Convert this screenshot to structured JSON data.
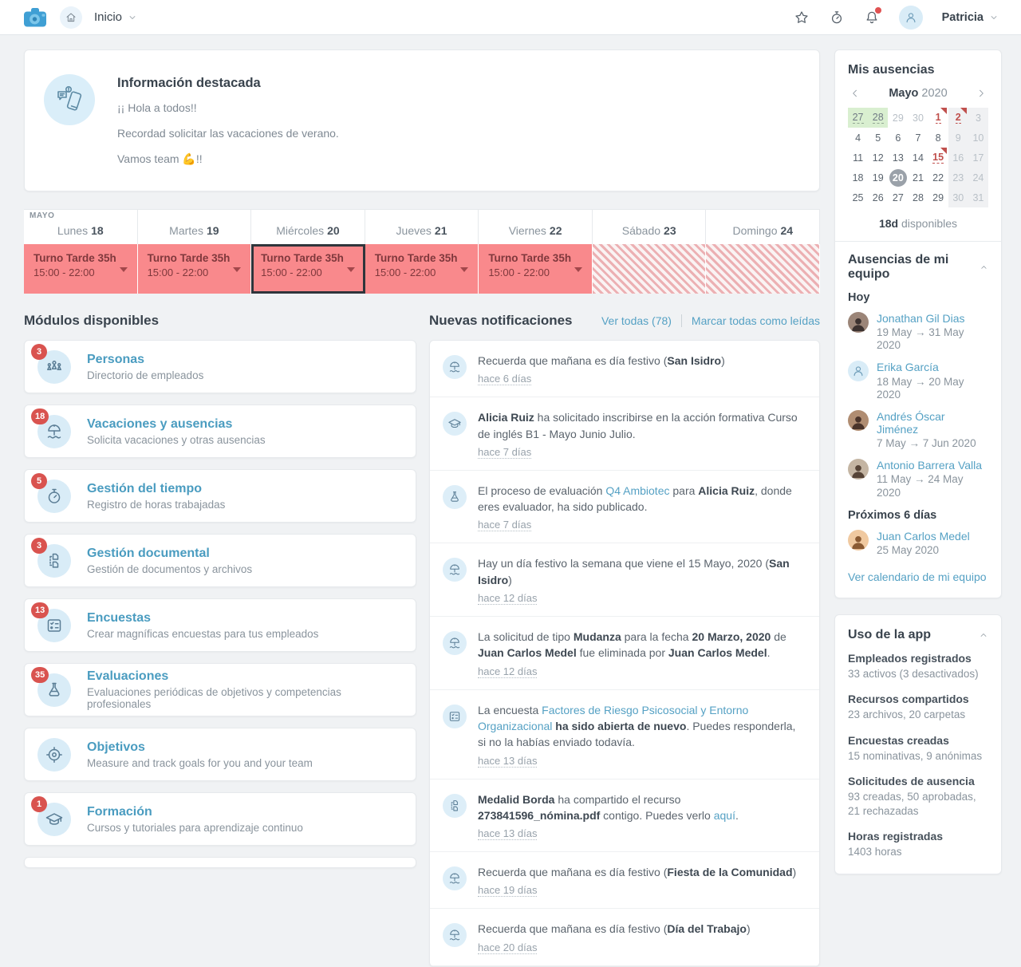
{
  "topbar": {
    "nav_title": "Inicio",
    "user_name": "Patricia"
  },
  "colors": {
    "accent_link": "#55a1c4",
    "badge_red": "#d9534f",
    "shift_pink": "#f9898c",
    "shift_text": "#7f383c",
    "calendar_red": "#c0504d",
    "calendar_green_bg": "#d9efd0",
    "selected_day_bg": "#9aa1a9",
    "notification_dot": "#e05252"
  },
  "highlight": {
    "title": "Información destacada",
    "lines": [
      "¡¡ Hola a todos!!",
      "Recordad solicitar las vacaciones de verano.",
      "Vamos team 💪!!"
    ]
  },
  "schedule": {
    "month_label": "MAYO",
    "shift_title": "Turno Tarde 35h",
    "shift_time": "15:00 - 22:00",
    "days": [
      {
        "name": "Lunes",
        "num": "18",
        "kind": "shift"
      },
      {
        "name": "Martes",
        "num": "19",
        "kind": "shift"
      },
      {
        "name": "Miércoles",
        "num": "20",
        "kind": "shift",
        "selected": true
      },
      {
        "name": "Jueves",
        "num": "21",
        "kind": "shift"
      },
      {
        "name": "Viernes",
        "num": "22",
        "kind": "shift"
      },
      {
        "name": "Sábado",
        "num": "23",
        "kind": "off"
      },
      {
        "name": "Domingo",
        "num": "24",
        "kind": "off"
      }
    ]
  },
  "modules": {
    "heading": "Módulos disponibles",
    "items": [
      {
        "id": "personas",
        "badge": "3",
        "icon": "people",
        "title": "Personas",
        "subtitle": "Directorio de empleados"
      },
      {
        "id": "vacaciones",
        "badge": "18",
        "icon": "umbrella",
        "title": "Vacaciones y ausencias",
        "subtitle": "Solicita vacaciones y otras ausencias"
      },
      {
        "id": "gestion-tiempo",
        "badge": "5",
        "icon": "stopwatch",
        "title": "Gestión del tiempo",
        "subtitle": "Registro de horas trabajadas"
      },
      {
        "id": "gestion-documental",
        "badge": "3",
        "icon": "documents",
        "title": "Gestión documental",
        "subtitle": "Gestión de documentos y archivos"
      },
      {
        "id": "encuestas",
        "badge": "13",
        "icon": "checklist",
        "title": "Encuestas",
        "subtitle": "Crear magníficas encuestas para tus empleados"
      },
      {
        "id": "evaluaciones",
        "badge": "35",
        "icon": "flask",
        "title": "Evaluaciones",
        "subtitle": "Evaluaciones periódicas de objetivos y competencias profesionales"
      },
      {
        "id": "objetivos",
        "badge": null,
        "icon": "target",
        "title": "Objetivos",
        "subtitle": "Measure and track goals for you and your team"
      },
      {
        "id": "formacion",
        "badge": "1",
        "icon": "gradcap",
        "title": "Formación",
        "subtitle": "Cursos y tutoriales para aprendizaje continuo"
      }
    ]
  },
  "notifications": {
    "heading": "Nuevas notificaciones",
    "view_all": "Ver todas (78)",
    "mark_all": "Marcar todas como leídas",
    "items": [
      {
        "icon": "umbrella",
        "time": "hace 6 días",
        "segments": [
          [
            "n",
            "Recuerda que mañana es día festivo ("
          ],
          [
            "b",
            "San Isidro"
          ],
          [
            "n",
            ")"
          ]
        ]
      },
      {
        "icon": "gradcap",
        "time": "hace 7 días",
        "segments": [
          [
            "b",
            "Alicia Ruiz"
          ],
          [
            "n",
            " ha solicitado inscribirse en la acción formativa Curso de inglés B1 - Mayo Junio Julio."
          ]
        ]
      },
      {
        "icon": "flask",
        "time": "hace 7 días",
        "segments": [
          [
            "n",
            "El proceso de evaluación "
          ],
          [
            "l",
            "Q4 Ambiotec"
          ],
          [
            "n",
            " para "
          ],
          [
            "b",
            "Alicia Ruiz"
          ],
          [
            "n",
            ", donde eres evaluador, ha sido publicado."
          ]
        ]
      },
      {
        "icon": "umbrella",
        "time": "hace 12 días",
        "segments": [
          [
            "n",
            "Hay un día festivo la semana que viene el 15 Mayo, 2020 ("
          ],
          [
            "b",
            "San Isidro"
          ],
          [
            "n",
            ")"
          ]
        ]
      },
      {
        "icon": "umbrella",
        "time": "hace 12 días",
        "segments": [
          [
            "n",
            "La solicitud de tipo "
          ],
          [
            "b",
            "Mudanza"
          ],
          [
            "n",
            " para la fecha "
          ],
          [
            "b",
            "20 Marzo, 2020"
          ],
          [
            "n",
            " de "
          ],
          [
            "b",
            "Juan Carlos Medel"
          ],
          [
            "n",
            " fue eliminada por "
          ],
          [
            "b",
            "Juan Carlos Medel"
          ],
          [
            "n",
            "."
          ]
        ]
      },
      {
        "icon": "checklist",
        "time": "hace 13 días",
        "segments": [
          [
            "n",
            "La encuesta "
          ],
          [
            "l",
            "Factores de Riesgo Psicosocial y Entorno Organizacional"
          ],
          [
            "n",
            " "
          ],
          [
            "b",
            "ha sido abierta de nuevo"
          ],
          [
            "n",
            ". Puedes responderla, si no la habías enviado todavía."
          ]
        ]
      },
      {
        "icon": "documents",
        "time": "hace 13 días",
        "segments": [
          [
            "b",
            "Medalid Borda"
          ],
          [
            "n",
            " ha compartido el recurso "
          ],
          [
            "b",
            "273841596_nómina.pdf"
          ],
          [
            "n",
            " contigo. Puedes verlo "
          ],
          [
            "l",
            "aquí"
          ],
          [
            "n",
            "."
          ]
        ]
      },
      {
        "icon": "umbrella",
        "time": "hace 19 días",
        "segments": [
          [
            "n",
            "Recuerda que mañana es día festivo ("
          ],
          [
            "b",
            "Fiesta de la Comunidad"
          ],
          [
            "n",
            ")"
          ]
        ]
      },
      {
        "icon": "umbrella",
        "time": "hace 20 días",
        "segments": [
          [
            "n",
            "Recuerda que mañana es día festivo ("
          ],
          [
            "b",
            "Día del Trabajo"
          ],
          [
            "n",
            ")"
          ]
        ]
      }
    ]
  },
  "my_absences": {
    "title": "Mis ausencias",
    "month": "Mayo",
    "year": "2020",
    "available_value": "18d",
    "available_label": "disponibles",
    "cells": [
      {
        "n": 27,
        "s": "green"
      },
      {
        "n": 28,
        "s": "green"
      },
      {
        "n": 29,
        "s": "muted"
      },
      {
        "n": 30,
        "s": "muted"
      },
      {
        "n": 1,
        "s": "red",
        "f": true
      },
      {
        "n": 2,
        "s": "red",
        "f": true,
        "wk": true
      },
      {
        "n": 3,
        "s": "muted",
        "wk": true
      },
      {
        "n": 4
      },
      {
        "n": 5
      },
      {
        "n": 6
      },
      {
        "n": 7
      },
      {
        "n": 8
      },
      {
        "n": 9,
        "s": "muted",
        "wk": true
      },
      {
        "n": 10,
        "s": "muted",
        "wk": true
      },
      {
        "n": 11
      },
      {
        "n": 12
      },
      {
        "n": 13
      },
      {
        "n": 14
      },
      {
        "n": 15,
        "s": "red",
        "f": true
      },
      {
        "n": 16,
        "s": "muted",
        "wk": true
      },
      {
        "n": 17,
        "s": "muted",
        "wk": true
      },
      {
        "n": 18
      },
      {
        "n": 19
      },
      {
        "n": 20,
        "s": "selected"
      },
      {
        "n": 21
      },
      {
        "n": 22
      },
      {
        "n": 23,
        "s": "muted",
        "wk": true
      },
      {
        "n": 24,
        "s": "muted",
        "wk": true
      },
      {
        "n": 25
      },
      {
        "n": 26
      },
      {
        "n": 27
      },
      {
        "n": 28
      },
      {
        "n": 29
      },
      {
        "n": 30,
        "s": "muted",
        "wk": true
      },
      {
        "n": 31,
        "s": "muted",
        "wk": true
      }
    ]
  },
  "team_absences": {
    "title": "Ausencias de mi equipo",
    "link": "Ver calendario de mi equipo",
    "groups": [
      {
        "label": "Hoy",
        "entries": [
          {
            "name": "Jonathan Gil Dias",
            "dates": "19 May → 31 May 2020",
            "avatar_type": "photo",
            "avatar_bg": "#9b8578",
            "avatar_fg": "#3c3230"
          },
          {
            "name": "Erika García",
            "dates": "18 May → 20 May 2020",
            "avatar_type": "placeholder",
            "avatar_bg": "#d9ecf7",
            "avatar_fg": "#6d9cb8"
          },
          {
            "name": "Andrés Óscar Jiménez",
            "dates": "7 May → 7 Jun 2020",
            "avatar_type": "photo",
            "avatar_bg": "#b08d72",
            "avatar_fg": "#4a342b"
          },
          {
            "name": "Antonio Barrera Valla",
            "dates": "11 May → 24 May 2020",
            "avatar_type": "photo",
            "avatar_bg": "#c4b5a3",
            "avatar_fg": "#564437"
          }
        ]
      },
      {
        "label": "Próximos 6 días",
        "entries": [
          {
            "name": "Juan Carlos Medel",
            "dates": "25 May 2020",
            "avatar_type": "photo",
            "avatar_bg": "#f0c9a0",
            "avatar_fg": "#8a5a33"
          }
        ]
      }
    ]
  },
  "app_usage": {
    "title": "Uso de la app",
    "stats": [
      {
        "label": "Empleados registrados",
        "value": "33 activos (3 desactivados)"
      },
      {
        "label": "Recursos compartidos",
        "value": "23 archivos, 20 carpetas"
      },
      {
        "label": "Encuestas creadas",
        "value": "15 nominativas, 9 anónimas"
      },
      {
        "label": "Solicitudes de ausencia",
        "value": "93 creadas, 50 aprobadas, 21 rechazadas"
      },
      {
        "label": "Horas registradas",
        "value": "1403 horas"
      }
    ]
  }
}
